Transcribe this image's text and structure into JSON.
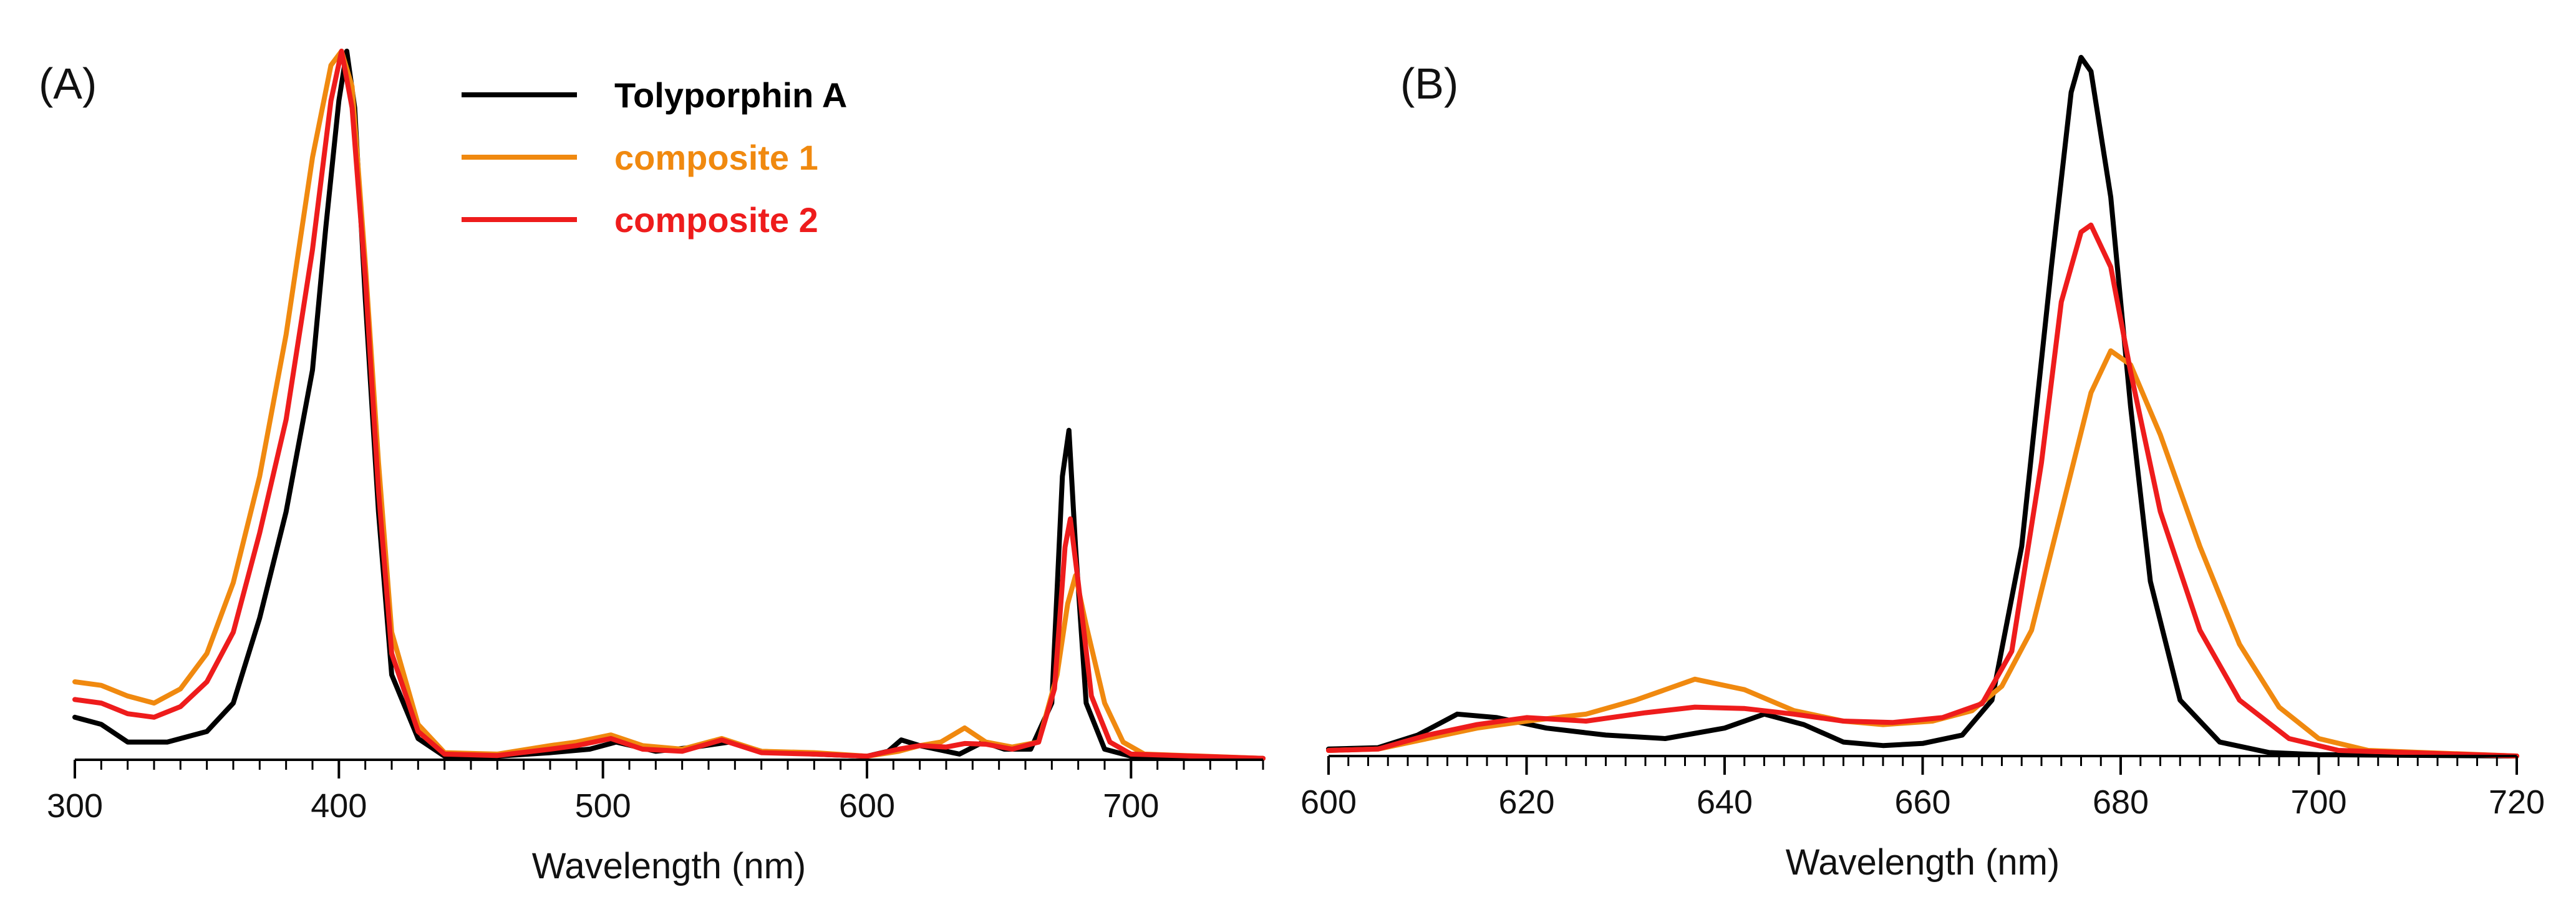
{
  "series_colors": {
    "tolyporphin_a": "#000000",
    "composite_1": "#f0890f",
    "composite_2": "#ee1c1c"
  },
  "chart_data": [
    {
      "type": "line",
      "panel_label": "(A)",
      "title": "",
      "xlabel": "Wavelength (nm)",
      "ylabel": "",
      "xlim": [
        300,
        750
      ],
      "ylim": [
        0,
        1.0
      ],
      "xticks": [
        300,
        400,
        500,
        600,
        700
      ],
      "minor_tick_step": 10,
      "grid": false,
      "legend": {
        "placement": "top-center",
        "entries": [
          {
            "key": "tolyporphin_a",
            "label": "Tolyporphin A",
            "color": "#000000"
          },
          {
            "key": "composite_1",
            "label": "composite 1",
            "color": "#f0890f"
          },
          {
            "key": "composite_2",
            "label": "composite 2",
            "color": "#ee1c1c"
          }
        ]
      },
      "series": [
        {
          "key": "tolyporphin_a",
          "name": "Tolyporphin A",
          "color": "#000000",
          "points": [
            [
              300,
              0.06
            ],
            [
              310,
              0.05
            ],
            [
              320,
              0.025
            ],
            [
              335,
              0.025
            ],
            [
              350,
              0.04
            ],
            [
              360,
              0.08
            ],
            [
              370,
              0.2
            ],
            [
              380,
              0.35
            ],
            [
              390,
              0.55
            ],
            [
              395,
              0.75
            ],
            [
              400,
              0.93
            ],
            [
              403,
              1.0
            ],
            [
              406,
              0.92
            ],
            [
              410,
              0.65
            ],
            [
              415,
              0.35
            ],
            [
              420,
              0.12
            ],
            [
              430,
              0.03
            ],
            [
              440,
              0.005
            ],
            [
              460,
              0.005
            ],
            [
              480,
              0.01
            ],
            [
              495,
              0.015
            ],
            [
              505,
              0.025
            ],
            [
              520,
              0.012
            ],
            [
              535,
              0.018
            ],
            [
              548,
              0.025
            ],
            [
              560,
              0.012
            ],
            [
              580,
              0.008
            ],
            [
              600,
              0.005
            ],
            [
              608,
              0.012
            ],
            [
              613,
              0.028
            ],
            [
              620,
              0.02
            ],
            [
              635,
              0.008
            ],
            [
              644,
              0.025
            ],
            [
              652,
              0.015
            ],
            [
              662,
              0.015
            ],
            [
              670,
              0.08
            ],
            [
              674,
              0.4
            ],
            [
              676.5,
              0.465
            ],
            [
              679,
              0.3
            ],
            [
              683,
              0.08
            ],
            [
              690,
              0.015
            ],
            [
              700,
              0.005
            ],
            [
              750,
              0.002
            ]
          ]
        },
        {
          "key": "composite_1",
          "name": "composite 1",
          "color": "#f0890f",
          "points": [
            [
              300,
              0.11
            ],
            [
              310,
              0.105
            ],
            [
              320,
              0.09
            ],
            [
              330,
              0.08
            ],
            [
              340,
              0.1
            ],
            [
              350,
              0.15
            ],
            [
              360,
              0.25
            ],
            [
              370,
              0.4
            ],
            [
              380,
              0.6
            ],
            [
              390,
              0.85
            ],
            [
              397,
              0.98
            ],
            [
              401,
              1.0
            ],
            [
              405,
              0.95
            ],
            [
              410,
              0.7
            ],
            [
              415,
              0.42
            ],
            [
              420,
              0.18
            ],
            [
              430,
              0.05
            ],
            [
              440,
              0.01
            ],
            [
              460,
              0.008
            ],
            [
              480,
              0.02
            ],
            [
              490,
              0.025
            ],
            [
              503,
              0.035
            ],
            [
              515,
              0.02
            ],
            [
              530,
              0.015
            ],
            [
              545,
              0.03
            ],
            [
              560,
              0.012
            ],
            [
              580,
              0.01
            ],
            [
              600,
              0.005
            ],
            [
              612,
              0.012
            ],
            [
              620,
              0.02
            ],
            [
              628,
              0.025
            ],
            [
              637,
              0.045
            ],
            [
              645,
              0.025
            ],
            [
              655,
              0.018
            ],
            [
              665,
              0.025
            ],
            [
              672,
              0.12
            ],
            [
              676,
              0.22
            ],
            [
              679,
              0.26
            ],
            [
              683,
              0.19
            ],
            [
              690,
              0.08
            ],
            [
              697,
              0.025
            ],
            [
              705,
              0.008
            ],
            [
              750,
              0.002
            ]
          ]
        },
        {
          "key": "composite_2",
          "name": "composite 2",
          "color": "#ee1c1c",
          "points": [
            [
              300,
              0.085
            ],
            [
              310,
              0.08
            ],
            [
              320,
              0.065
            ],
            [
              330,
              0.06
            ],
            [
              340,
              0.075
            ],
            [
              350,
              0.11
            ],
            [
              360,
              0.18
            ],
            [
              370,
              0.32
            ],
            [
              380,
              0.48
            ],
            [
              390,
              0.72
            ],
            [
              397,
              0.93
            ],
            [
              401,
              1.0
            ],
            [
              405,
              0.92
            ],
            [
              410,
              0.68
            ],
            [
              415,
              0.38
            ],
            [
              420,
              0.15
            ],
            [
              430,
              0.04
            ],
            [
              440,
              0.008
            ],
            [
              460,
              0.006
            ],
            [
              480,
              0.015
            ],
            [
              490,
              0.02
            ],
            [
              503,
              0.03
            ],
            [
              515,
              0.015
            ],
            [
              530,
              0.012
            ],
            [
              545,
              0.028
            ],
            [
              560,
              0.01
            ],
            [
              580,
              0.008
            ],
            [
              600,
              0.005
            ],
            [
              612,
              0.015
            ],
            [
              620,
              0.02
            ],
            [
              630,
              0.018
            ],
            [
              637,
              0.023
            ],
            [
              645,
              0.022
            ],
            [
              655,
              0.015
            ],
            [
              665,
              0.025
            ],
            [
              671,
              0.1
            ],
            [
              675,
              0.3
            ],
            [
              677,
              0.34
            ],
            [
              680,
              0.25
            ],
            [
              685,
              0.09
            ],
            [
              692,
              0.025
            ],
            [
              700,
              0.008
            ],
            [
              750,
              0.002
            ]
          ]
        }
      ]
    },
    {
      "type": "line",
      "panel_label": "(B)",
      "title": "",
      "xlabel": "Wavelength (nm)",
      "ylabel": "",
      "xlim": [
        600,
        720
      ],
      "ylim": [
        0,
        1.0
      ],
      "xticks": [
        600,
        620,
        640,
        660,
        680,
        700,
        720
      ],
      "minor_tick_step": 2,
      "grid": false,
      "series": [
        {
          "key": "tolyporphin_a",
          "name": "Tolyporphin A",
          "color": "#000000",
          "points": [
            [
              600,
              0.01
            ],
            [
              605,
              0.012
            ],
            [
              609,
              0.03
            ],
            [
              613,
              0.06
            ],
            [
              617,
              0.055
            ],
            [
              622,
              0.04
            ],
            [
              628,
              0.03
            ],
            [
              634,
              0.025
            ],
            [
              640,
              0.04
            ],
            [
              644,
              0.06
            ],
            [
              648,
              0.045
            ],
            [
              652,
              0.02
            ],
            [
              656,
              0.015
            ],
            [
              660,
              0.018
            ],
            [
              664,
              0.03
            ],
            [
              667,
              0.08
            ],
            [
              670,
              0.3
            ],
            [
              673,
              0.7
            ],
            [
              675,
              0.95
            ],
            [
              676,
              1.0
            ],
            [
              677,
              0.98
            ],
            [
              679,
              0.8
            ],
            [
              681,
              0.5
            ],
            [
              683,
              0.25
            ],
            [
              686,
              0.08
            ],
            [
              690,
              0.02
            ],
            [
              695,
              0.005
            ],
            [
              700,
              0.002
            ],
            [
              720,
              0.0
            ]
          ]
        },
        {
          "key": "composite_1",
          "name": "composite 1",
          "color": "#f0890f",
          "points": [
            [
              600,
              0.008
            ],
            [
              605,
              0.01
            ],
            [
              610,
              0.025
            ],
            [
              615,
              0.04
            ],
            [
              620,
              0.05
            ],
            [
              626,
              0.06
            ],
            [
              631,
              0.08
            ],
            [
              637,
              0.11
            ],
            [
              642,
              0.095
            ],
            [
              647,
              0.065
            ],
            [
              652,
              0.05
            ],
            [
              656,
              0.045
            ],
            [
              661,
              0.05
            ],
            [
              665,
              0.065
            ],
            [
              668,
              0.1
            ],
            [
              671,
              0.18
            ],
            [
              674,
              0.35
            ],
            [
              677,
              0.52
            ],
            [
              679,
              0.58
            ],
            [
              681,
              0.56
            ],
            [
              684,
              0.46
            ],
            [
              688,
              0.3
            ],
            [
              692,
              0.16
            ],
            [
              696,
              0.07
            ],
            [
              700,
              0.025
            ],
            [
              705,
              0.008
            ],
            [
              720,
              0.0
            ]
          ]
        },
        {
          "key": "composite_2",
          "name": "composite 2",
          "color": "#ee1c1c",
          "points": [
            [
              600,
              0.008
            ],
            [
              605,
              0.01
            ],
            [
              610,
              0.03
            ],
            [
              615,
              0.045
            ],
            [
              620,
              0.055
            ],
            [
              626,
              0.05
            ],
            [
              632,
              0.062
            ],
            [
              637,
              0.07
            ],
            [
              642,
              0.068
            ],
            [
              647,
              0.06
            ],
            [
              652,
              0.05
            ],
            [
              657,
              0.048
            ],
            [
              662,
              0.055
            ],
            [
              666,
              0.075
            ],
            [
              669,
              0.15
            ],
            [
              672,
              0.42
            ],
            [
              674,
              0.65
            ],
            [
              676,
              0.75
            ],
            [
              677,
              0.76
            ],
            [
              679,
              0.7
            ],
            [
              681,
              0.55
            ],
            [
              684,
              0.35
            ],
            [
              688,
              0.18
            ],
            [
              692,
              0.08
            ],
            [
              697,
              0.025
            ],
            [
              702,
              0.008
            ],
            [
              720,
              0.0
            ]
          ]
        }
      ]
    }
  ]
}
